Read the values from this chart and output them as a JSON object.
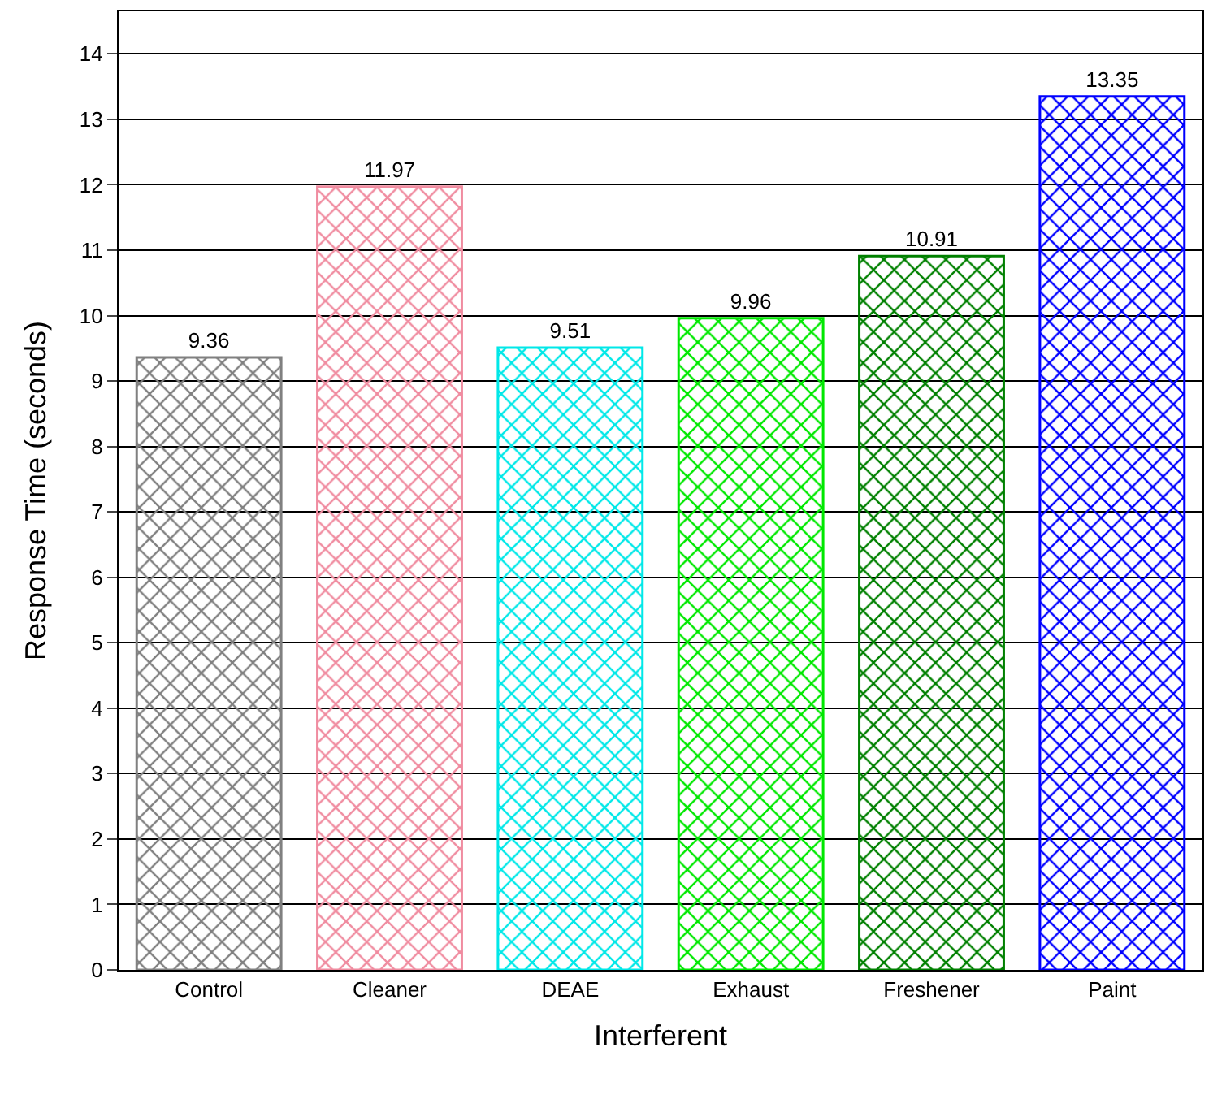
{
  "chart_data": {
    "type": "bar",
    "xlabel": "Interferent",
    "ylabel": "Response Time (seconds)",
    "categories": [
      "Control",
      "Cleaner",
      "DEAE",
      "Exhaust",
      "Freshener",
      "Paint"
    ],
    "values": [
      9.36,
      11.97,
      9.51,
      9.96,
      10.91,
      13.35
    ],
    "colors": [
      "#808080",
      "#f08ca0",
      "#00e8e8",
      "#00e800",
      "#008000",
      "#0000ff"
    ],
    "value_labels": [
      "9.36",
      "11.97",
      "9.51",
      "9.96",
      "10.91",
      "13.35"
    ],
    "ylim": [
      0,
      14.65
    ],
    "yticks": [
      0,
      1,
      2,
      3,
      4,
      5,
      6,
      7,
      8,
      9,
      10,
      11,
      12,
      13,
      14
    ],
    "grid": "y",
    "legend": false
  }
}
